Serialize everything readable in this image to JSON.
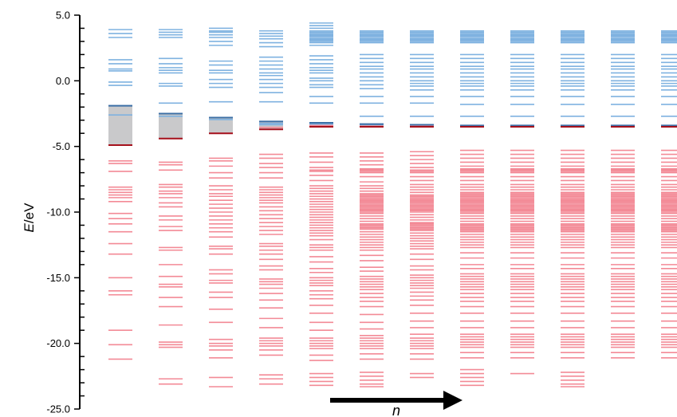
{
  "chart_data": {
    "type": "energy-level diagram",
    "ylabel_symbol": "E",
    "ylabel_unit": "/eV",
    "ylim": [
      -25.0,
      5.0
    ],
    "yticks": [
      5.0,
      0.0,
      -5.0,
      -10.0,
      -15.0,
      -20.0,
      -25.0
    ],
    "ytick_labels": [
      "5.0",
      "0.0",
      "-5.0",
      "-10.0",
      "-15.0",
      "-20.0",
      "-25.0"
    ],
    "minor_tick_step": 1.0,
    "arrow_label": "n",
    "colors": {
      "unoccupied": "#7fb2e0",
      "unoccupied_edge": "#3c6fa6",
      "occupied": "#f38a96",
      "occupied_edge": "#a5111c",
      "gap_fill": "#c9c9cb",
      "axis": "#000000"
    },
    "columns": [
      {
        "homo": -4.9,
        "lumo": -1.9,
        "unoccupied_levels": [
          -1.9,
          -2.6,
          -0.35,
          -0.1,
          0.75,
          0.9,
          1.3,
          1.6,
          3.3,
          3.6,
          3.9
        ],
        "occupied_levels": [
          -4.9,
          -6.1,
          -6.3,
          -6.9,
          -8.1,
          -8.3,
          -8.5,
          -8.7,
          -8.9,
          -9.2,
          -10.1,
          -10.5,
          -10.9,
          -11.5,
          -12.4,
          -13.2,
          -15.0,
          -16.0,
          -16.3,
          -19.0,
          -20.1,
          -21.2
        ]
      },
      {
        "homo": -4.4,
        "lumo": -2.5,
        "unoccupied_levels": [
          -2.5,
          -2.7,
          -1.7,
          -0.4,
          -0.2,
          0.6,
          0.8,
          1.0,
          1.3,
          1.7,
          3.3,
          3.5,
          3.7,
          3.9
        ],
        "occupied_levels": [
          -4.4,
          -6.2,
          -6.4,
          -6.8,
          -7.9,
          -8.1,
          -8.4,
          -8.6,
          -8.9,
          -9.3,
          -9.6,
          -10.3,
          -10.6,
          -11.1,
          -11.4,
          -12.7,
          -12.9,
          -14.0,
          -14.9,
          -15.5,
          -15.7,
          -16.5,
          -17.2,
          -18.6,
          -19.9,
          -20.1,
          -20.3,
          -22.7,
          -23.1
        ]
      },
      {
        "homo": -4.0,
        "lumo": -2.8,
        "unoccupied_levels": [
          -2.8,
          -2.95,
          -1.6,
          -0.5,
          -0.2,
          0.1,
          0.6,
          0.8,
          1.2,
          1.5,
          2.7,
          3.0,
          3.3,
          3.5,
          3.7,
          3.8,
          4.0
        ],
        "occupied_levels": [
          -4.0,
          -5.9,
          -6.1,
          -6.5,
          -7.0,
          -7.4,
          -8.0,
          -8.3,
          -8.6,
          -8.8,
          -9.1,
          -9.4,
          -9.7,
          -10.0,
          -10.3,
          -10.6,
          -10.9,
          -11.2,
          -11.5,
          -11.9,
          -12.6,
          -12.8,
          -13.2,
          -14.4,
          -14.7,
          -15.2,
          -15.4,
          -16.1,
          -16.5,
          -17.4,
          -18.4,
          -19.7,
          -20.0,
          -20.2,
          -20.5,
          -21.1,
          -22.6,
          -23.3
        ]
      },
      {
        "homo": -3.7,
        "lumo": -3.1,
        "unoccupied_levels": [
          -3.1,
          -3.25,
          -3.35,
          -1.6,
          -0.9,
          -0.5,
          -0.2,
          0.1,
          0.4,
          0.6,
          0.9,
          1.2,
          1.5,
          1.8,
          2.6,
          2.9,
          3.2,
          3.4,
          3.6,
          3.8
        ],
        "occupied_levels": [
          -3.7,
          -3.55,
          -5.6,
          -5.9,
          -6.3,
          -6.6,
          -7.0,
          -7.4,
          -8.1,
          -8.3,
          -8.5,
          -8.7,
          -8.9,
          -9.1,
          -9.3,
          -9.6,
          -9.9,
          -10.2,
          -10.5,
          -10.8,
          -11.1,
          -11.4,
          -11.7,
          -12.4,
          -12.6,
          -12.9,
          -13.2,
          -13.6,
          -14.1,
          -14.4,
          -15.1,
          -15.3,
          -15.5,
          -15.8,
          -16.2,
          -16.7,
          -17.3,
          -18.1,
          -18.8,
          -19.6,
          -19.8,
          -20.0,
          -20.2,
          -20.5,
          -20.9,
          -22.4,
          -22.7,
          -23.1
        ]
      },
      {
        "homo": -3.5,
        "lumo": -3.2,
        "unoccupied_levels": [
          -3.2,
          -3.3,
          -1.7,
          -1.2,
          -0.5,
          -0.3,
          0.0,
          0.2,
          0.6,
          0.8,
          1.0,
          1.3,
          1.6,
          1.9,
          2.7,
          2.9,
          3.0,
          3.1,
          3.2,
          3.3,
          3.4,
          3.5,
          3.6,
          3.7,
          3.8,
          4.0,
          4.2,
          4.4
        ],
        "occupied_levels": [
          -3.5,
          -3.4,
          -5.5,
          -5.8,
          -6.2,
          -6.6,
          -6.8,
          -6.9,
          -7.2,
          -7.6,
          -8.0,
          -8.2,
          -8.4,
          -8.6,
          -8.8,
          -9.0,
          -9.2,
          -9.4,
          -9.6,
          -9.8,
          -10.0,
          -10.2,
          -10.4,
          -10.6,
          -10.8,
          -11.0,
          -11.2,
          -11.4,
          -11.6,
          -11.8,
          -12.1,
          -12.5,
          -12.7,
          -12.9,
          -13.4,
          -13.8,
          -14.3,
          -14.6,
          -15.0,
          -15.2,
          -15.4,
          -15.6,
          -16.0,
          -16.3,
          -16.6,
          -17.1,
          -17.7,
          -18.4,
          -19.0,
          -19.6,
          -19.8,
          -20.0,
          -20.2,
          -20.4,
          -20.9,
          -21.3,
          -22.3,
          -22.6,
          -22.9,
          -23.2
        ]
      },
      {
        "homo": -3.5,
        "lumo": -3.3,
        "unoccupied_levels": [
          -3.3,
          -3.35,
          -2.7,
          -1.7,
          -1.2,
          -0.6,
          -0.3,
          0.0,
          0.3,
          0.6,
          0.9,
          1.1,
          1.4,
          1.7,
          2.0,
          2.9,
          3.0,
          3.1,
          3.2,
          3.3,
          3.4,
          3.5,
          3.6,
          3.7,
          3.8
        ],
        "occupied_levels": [
          -3.5,
          -3.45,
          -5.5,
          -5.8,
          -6.1,
          -6.4,
          -6.7,
          -6.8,
          -6.9,
          -7.0,
          -7.3,
          -7.7,
          -8.0,
          -8.2,
          -8.4,
          -8.6,
          -8.7,
          -8.8,
          -8.9,
          -9.0,
          -9.1,
          -9.2,
          -9.3,
          -9.4,
          -9.5,
          -9.6,
          -9.7,
          -9.8,
          -9.9,
          -10.0,
          -10.1,
          -10.3,
          -10.5,
          -10.7,
          -10.9,
          -11.0,
          -11.1,
          -11.2,
          -11.3,
          -11.5,
          -11.7,
          -11.9,
          -12.1,
          -12.3,
          -12.5,
          -12.7,
          -12.9,
          -13.3,
          -13.7,
          -14.2,
          -14.5,
          -14.9,
          -15.1,
          -15.3,
          -15.5,
          -15.7,
          -15.9,
          -16.2,
          -16.5,
          -16.8,
          -17.2,
          -17.8,
          -18.4,
          -18.9,
          -19.4,
          -19.6,
          -19.8,
          -20.0,
          -20.2,
          -20.4,
          -20.8,
          -21.2,
          -22.2,
          -22.5,
          -22.8,
          -23.1,
          -23.3
        ]
      },
      {
        "homo": -3.5,
        "lumo": -3.35,
        "unoccupied_levels": [
          -3.35,
          -3.4,
          -2.7,
          -1.7,
          -1.2,
          -0.7,
          -0.4,
          -0.2,
          0.0,
          0.3,
          0.6,
          0.9,
          1.1,
          1.4,
          1.7,
          2.0,
          2.9,
          3.0,
          3.1,
          3.2,
          3.3,
          3.4,
          3.5,
          3.6,
          3.7,
          3.8
        ],
        "occupied_levels": [
          -3.5,
          -3.45,
          -5.4,
          -5.7,
          -6.0,
          -6.3,
          -6.6,
          -6.8,
          -6.9,
          -7.0,
          -7.3,
          -7.6,
          -7.9,
          -8.1,
          -8.3,
          -8.5,
          -8.7,
          -8.8,
          -8.9,
          -9.0,
          -9.1,
          -9.2,
          -9.3,
          -9.4,
          -9.5,
          -9.6,
          -9.7,
          -9.8,
          -9.9,
          -10.0,
          -10.2,
          -10.4,
          -10.6,
          -10.8,
          -10.9,
          -11.0,
          -11.1,
          -11.2,
          -11.3,
          -11.4,
          -11.6,
          -11.8,
          -12.0,
          -12.2,
          -12.4,
          -12.6,
          -12.8,
          -13.2,
          -13.6,
          -14.1,
          -14.4,
          -14.8,
          -15.0,
          -15.2,
          -15.4,
          -15.6,
          -15.8,
          -16.1,
          -16.4,
          -16.7,
          -17.1,
          -17.7,
          -18.3,
          -18.8,
          -19.3,
          -19.6,
          -19.8,
          -20.0,
          -20.2,
          -20.4,
          -20.8,
          -21.2,
          -22.3,
          -22.6
        ]
      },
      {
        "homo": -3.5,
        "lumo": -3.4,
        "unoccupied_levels": [
          -3.4,
          -3.45,
          -2.7,
          -1.8,
          -1.2,
          -0.7,
          -0.4,
          -0.2,
          0.0,
          0.3,
          0.6,
          0.9,
          1.1,
          1.4,
          1.7,
          2.0,
          2.9,
          3.0,
          3.1,
          3.2,
          3.3,
          3.4,
          3.5,
          3.6,
          3.7,
          3.8
        ],
        "occupied_levels": [
          -3.5,
          -3.45,
          -5.3,
          -5.6,
          -5.9,
          -6.2,
          -6.5,
          -6.7,
          -6.8,
          -6.9,
          -7.0,
          -7.3,
          -7.6,
          -7.9,
          -8.1,
          -8.3,
          -8.5,
          -8.6,
          -8.7,
          -8.8,
          -8.9,
          -9.0,
          -9.1,
          -9.2,
          -9.3,
          -9.4,
          -9.5,
          -9.6,
          -9.7,
          -9.8,
          -9.9,
          -10.0,
          -10.1,
          -10.3,
          -10.5,
          -10.7,
          -10.9,
          -11.0,
          -11.1,
          -11.2,
          -11.3,
          -11.4,
          -11.5,
          -11.7,
          -11.9,
          -12.1,
          -12.3,
          -12.5,
          -12.7,
          -13.1,
          -13.5,
          -14.0,
          -14.3,
          -14.7,
          -14.9,
          -15.1,
          -15.3,
          -15.5,
          -15.7,
          -15.9,
          -16.2,
          -16.5,
          -16.8,
          -17.2,
          -17.7,
          -18.3,
          -18.8,
          -19.3,
          -19.5,
          -19.7,
          -19.9,
          -20.1,
          -20.3,
          -20.7,
          -21.1,
          -22.0,
          -22.3,
          -22.6,
          -22.9,
          -23.2
        ]
      },
      {
        "homo": -3.5,
        "lumo": -3.4,
        "unoccupied_levels": [
          -3.4,
          -3.45,
          -2.7,
          -1.8,
          -1.2,
          -0.7,
          -0.4,
          -0.2,
          0.0,
          0.3,
          0.6,
          0.9,
          1.1,
          1.4,
          1.7,
          2.0,
          2.9,
          3.0,
          3.1,
          3.2,
          3.3,
          3.4,
          3.5,
          3.6,
          3.7,
          3.8
        ],
        "occupied_levels": [
          -3.5,
          -3.45,
          -5.3,
          -5.6,
          -5.9,
          -6.2,
          -6.5,
          -6.7,
          -6.8,
          -6.9,
          -7.0,
          -7.3,
          -7.6,
          -7.9,
          -8.1,
          -8.3,
          -8.5,
          -8.6,
          -8.7,
          -8.8,
          -8.9,
          -9.0,
          -9.1,
          -9.2,
          -9.3,
          -9.4,
          -9.5,
          -9.6,
          -9.7,
          -9.8,
          -9.9,
          -10.0,
          -10.1,
          -10.3,
          -10.5,
          -10.7,
          -10.9,
          -11.0,
          -11.1,
          -11.2,
          -11.3,
          -11.4,
          -11.5,
          -11.7,
          -11.9,
          -12.1,
          -12.3,
          -12.5,
          -12.7,
          -13.1,
          -13.5,
          -14.0,
          -14.3,
          -14.7,
          -14.9,
          -15.1,
          -15.3,
          -15.5,
          -15.7,
          -15.9,
          -16.2,
          -16.5,
          -16.8,
          -17.2,
          -17.7,
          -18.3,
          -18.8,
          -19.3,
          -19.5,
          -19.7,
          -19.9,
          -20.1,
          -20.3,
          -20.7,
          -21.1,
          -22.3
        ]
      },
      {
        "homo": -3.5,
        "lumo": -3.4,
        "unoccupied_levels": [
          -3.4,
          -3.45,
          -2.7,
          -1.8,
          -1.2,
          -0.7,
          -0.4,
          -0.2,
          0.0,
          0.3,
          0.6,
          0.9,
          1.1,
          1.4,
          1.7,
          2.0,
          2.9,
          3.0,
          3.1,
          3.2,
          3.3,
          3.4,
          3.5,
          3.6,
          3.7,
          3.8
        ],
        "occupied_levels": [
          -3.5,
          -3.45,
          -5.3,
          -5.6,
          -5.9,
          -6.2,
          -6.5,
          -6.7,
          -6.8,
          -6.9,
          -7.0,
          -7.3,
          -7.6,
          -7.9,
          -8.1,
          -8.3,
          -8.5,
          -8.6,
          -8.7,
          -8.8,
          -8.9,
          -9.0,
          -9.1,
          -9.2,
          -9.3,
          -9.4,
          -9.5,
          -9.6,
          -9.7,
          -9.8,
          -9.9,
          -10.0,
          -10.1,
          -10.3,
          -10.5,
          -10.7,
          -10.9,
          -11.0,
          -11.1,
          -11.2,
          -11.3,
          -11.4,
          -11.5,
          -11.7,
          -11.9,
          -12.1,
          -12.3,
          -12.5,
          -12.7,
          -13.1,
          -13.5,
          -14.0,
          -14.3,
          -14.7,
          -14.9,
          -15.1,
          -15.3,
          -15.5,
          -15.7,
          -15.9,
          -16.2,
          -16.5,
          -16.8,
          -17.2,
          -17.7,
          -18.3,
          -18.8,
          -19.3,
          -19.5,
          -19.7,
          -19.9,
          -20.1,
          -20.3,
          -20.7,
          -21.1,
          -22.2,
          -22.5,
          -22.8,
          -23.1,
          -23.3
        ]
      },
      {
        "homo": -3.5,
        "lumo": -3.4,
        "unoccupied_levels": [
          -3.4,
          -3.45,
          -2.7,
          -1.8,
          -1.2,
          -0.7,
          -0.4,
          -0.2,
          0.0,
          0.3,
          0.6,
          0.9,
          1.1,
          1.4,
          1.7,
          2.0,
          2.9,
          3.0,
          3.1,
          3.2,
          3.3,
          3.4,
          3.5,
          3.6,
          3.7,
          3.8
        ],
        "occupied_levels": [
          -3.5,
          -3.45,
          -5.3,
          -5.6,
          -5.9,
          -6.2,
          -6.5,
          -6.7,
          -6.8,
          -6.9,
          -7.0,
          -7.3,
          -7.6,
          -7.9,
          -8.1,
          -8.3,
          -8.5,
          -8.6,
          -8.7,
          -8.8,
          -8.9,
          -9.0,
          -9.1,
          -9.2,
          -9.3,
          -9.4,
          -9.5,
          -9.6,
          -9.7,
          -9.8,
          -9.9,
          -10.0,
          -10.1,
          -10.3,
          -10.5,
          -10.7,
          -10.9,
          -11.0,
          -11.1,
          -11.2,
          -11.3,
          -11.4,
          -11.5,
          -11.7,
          -11.9,
          -12.1,
          -12.3,
          -12.5,
          -12.7,
          -13.1,
          -13.5,
          -14.0,
          -14.3,
          -14.7,
          -14.9,
          -15.1,
          -15.3,
          -15.5,
          -15.7,
          -15.9,
          -16.2,
          -16.5,
          -16.8,
          -17.2,
          -17.7,
          -18.3,
          -18.8,
          -19.3,
          -19.5,
          -19.7,
          -19.9,
          -20.1,
          -20.3,
          -20.7,
          -21.1
        ]
      },
      {
        "homo": -3.5,
        "lumo": -3.4,
        "unoccupied_levels": [
          -3.4,
          -3.45,
          -2.7,
          -1.8,
          -1.2,
          -0.7,
          -0.4,
          -0.2,
          0.0,
          0.3,
          0.6,
          0.9,
          1.1,
          1.4,
          1.7,
          2.0,
          2.9,
          3.0,
          3.1,
          3.2,
          3.3,
          3.4,
          3.5,
          3.6,
          3.7,
          3.8
        ],
        "occupied_levels": [
          -3.5,
          -3.45,
          -5.3,
          -5.6,
          -5.9,
          -6.2,
          -6.5,
          -6.7,
          -6.8,
          -6.9,
          -7.0,
          -7.3,
          -7.6,
          -7.9,
          -8.1,
          -8.3,
          -8.5,
          -8.6,
          -8.7,
          -8.8,
          -8.9,
          -9.0,
          -9.1,
          -9.2,
          -9.3,
          -9.4,
          -9.5,
          -9.6,
          -9.7,
          -9.8,
          -9.9,
          -10.0,
          -10.1,
          -10.3,
          -10.5,
          -10.7,
          -10.9,
          -11.0,
          -11.1,
          -11.2,
          -11.3,
          -11.4,
          -11.5,
          -11.7,
          -11.9,
          -12.1,
          -12.3,
          -12.5,
          -12.7,
          -13.1,
          -13.5,
          -14.0,
          -14.3,
          -14.7,
          -14.9,
          -15.1,
          -15.3,
          -15.5,
          -15.7,
          -15.9,
          -16.2,
          -16.5,
          -16.8,
          -17.2,
          -17.7,
          -18.3,
          -18.8,
          -19.3,
          -19.5,
          -19.7,
          -19.9,
          -20.1,
          -20.3,
          -20.7,
          -21.1
        ]
      }
    ]
  }
}
